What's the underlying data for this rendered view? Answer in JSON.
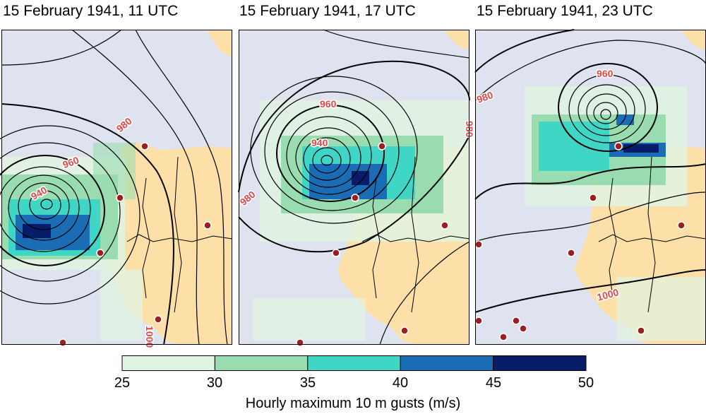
{
  "panels": [
    {
      "title": "15 February 1941, 11 UTC",
      "labels": [
        "980",
        "960",
        "940",
        "1000"
      ]
    },
    {
      "title": "15 February 1941, 17 UTC",
      "labels": [
        "960",
        "940",
        "980",
        "980"
      ]
    },
    {
      "title": "15 February 1941, 23 UTC",
      "labels": [
        "980",
        "960",
        "1000"
      ]
    }
  ],
  "colorbar": {
    "ticks": [
      "25",
      "30",
      "35",
      "40",
      "45",
      "50"
    ],
    "label": "Hourly maximum 10 m gusts (m/s)",
    "colors": [
      "#e1f3e1",
      "#99dcb0",
      "#3fd6c6",
      "#1a6db5",
      "#081d6a"
    ]
  },
  "colors": {
    "ocean": "#dfe3ef",
    "land": "#fde0a8",
    "contour": "#000000",
    "contour_label": "#e04848",
    "station": "#9b1f1f"
  }
}
